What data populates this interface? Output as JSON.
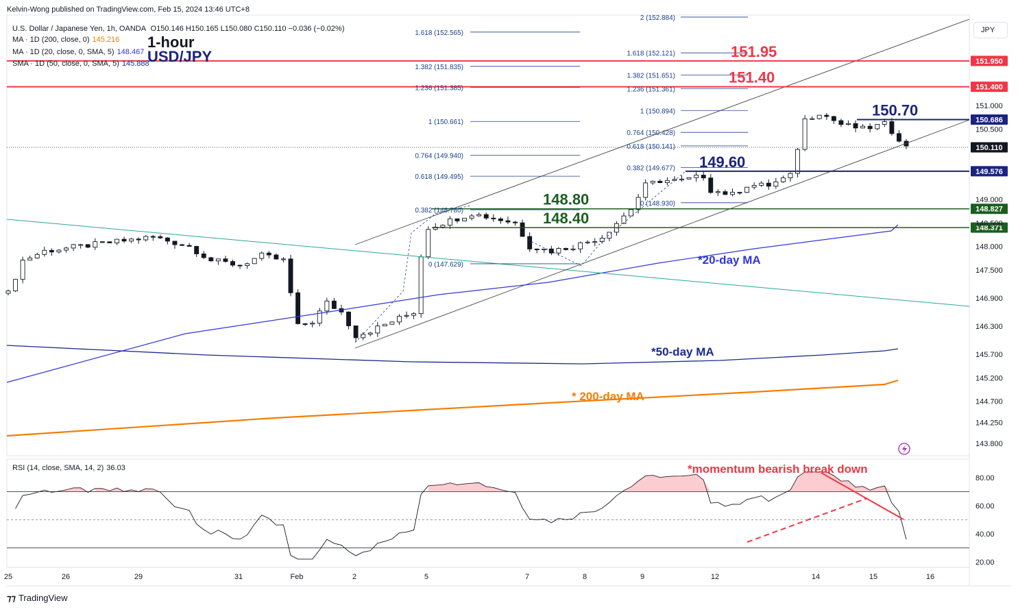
{
  "header": {
    "publisher": "Kelvin-Wong published on TradingView.com, Feb 15, 2024 13:46 UTC+8",
    "symbol_line": "U.S. Dollar / Japanese Yen, 1h, OANDA",
    "ohlc": "O150.146  H150.165  L150.080  C150.110  −0.036 (−0.02%)",
    "ind1_label": "MA · 1D (200, close, 0)",
    "ind1_value": "145.216",
    "ind2_label": "MA · 1D (20, close, 0, SMA, 5)",
    "ind2_value": "148.467",
    "ind3_label": "SMA · 1D (50, close, 0, SMA, 5)",
    "ind3_value": "145.888",
    "title_line1": "1-hour",
    "title_line2": "USD/JPY",
    "currency_button": "JPY",
    "rsi_label": "RSI (14, close, SMA, 14, 2)",
    "rsi_value": "36.03",
    "footer": "TradingView"
  },
  "colors": {
    "up": "#131722",
    "resistance": "#f23645",
    "support": "#1b5e20",
    "pivot": "#1a237e",
    "ma20": "#3036d6",
    "ma50": "#1a2a8c",
    "ma200": "#f57c00",
    "channel": "#444444",
    "downtrend": "#26a69a",
    "fib": "#1a3f8c"
  },
  "chart_data": [
    {
      "type": "candlestick",
      "series_name": "U.S. Dollar / Japanese Yen, 1h",
      "price_axis_ticks": [
        "151.000",
        "150.500",
        "149.000",
        "148.500",
        "148.000",
        "147.500",
        "146.900",
        "146.300",
        "145.700",
        "145.200",
        "144.700",
        "144.250",
        "143.800"
      ],
      "time_axis_labels": [
        "25",
        "26",
        "29",
        "31",
        "Feb",
        "2",
        "5",
        "7",
        "8",
        "9",
        "12",
        "14",
        "15",
        "16"
      ],
      "price_path": [
        [
          0,
          147.0
        ],
        [
          2,
          147.7
        ],
        [
          5,
          147.9
        ],
        [
          10,
          148.0
        ],
        [
          15,
          148.1
        ],
        [
          20,
          148.2
        ],
        [
          25,
          148.0
        ],
        [
          28,
          147.7
        ],
        [
          32,
          147.6
        ],
        [
          35,
          147.8
        ],
        [
          38,
          147.7
        ],
        [
          40,
          146.3
        ],
        [
          42,
          146.4
        ],
        [
          44,
          146.8
        ],
        [
          46,
          146.6
        ],
        [
          48,
          146.1
        ],
        [
          50,
          146.2
        ],
        [
          53,
          146.4
        ],
        [
          56,
          146.6
        ],
        [
          57,
          147.8
        ],
        [
          58,
          148.4
        ],
        [
          60,
          148.5
        ],
        [
          62,
          148.6
        ],
        [
          64,
          148.7
        ],
        [
          67,
          148.6
        ],
        [
          70,
          148.5
        ],
        [
          72,
          148.0
        ],
        [
          75,
          147.9
        ],
        [
          78,
          148.0
        ],
        [
          80,
          148.1
        ],
        [
          82,
          148.2
        ],
        [
          84,
          148.5
        ],
        [
          86,
          148.8
        ],
        [
          88,
          149.3
        ],
        [
          90,
          149.4
        ],
        [
          93,
          149.4
        ],
        [
          96,
          149.5
        ],
        [
          97,
          149.2
        ],
        [
          100,
          149.1
        ],
        [
          102,
          149.3
        ],
        [
          105,
          149.3
        ],
        [
          108,
          149.5
        ],
        [
          110,
          150.7
        ],
        [
          112,
          150.85
        ],
        [
          115,
          150.6
        ],
        [
          118,
          150.5
        ],
        [
          121,
          150.6
        ],
        [
          123,
          150.3
        ],
        [
          124,
          150.11
        ]
      ],
      "levels": [
        {
          "value": 151.95,
          "label": "151.95",
          "axis_label": "151.950",
          "role": "resistance"
        },
        {
          "value": 151.4,
          "label": "151.40",
          "axis_label": "151.400",
          "role": "resistance"
        },
        {
          "value": 150.7,
          "label": "150.70",
          "axis_label": "150.686",
          "role": "pivot"
        },
        {
          "value": 150.11,
          "label": "",
          "axis_label": "150.110",
          "role": "last"
        },
        {
          "value": 149.6,
          "label": "149.60",
          "axis_label": "149.576",
          "role": "pivot"
        },
        {
          "value": 148.8,
          "label": "148.80",
          "axis_label": "148.827",
          "role": "support"
        },
        {
          "value": 148.4,
          "label": "148.40",
          "axis_label": "148.371",
          "role": "support"
        }
      ],
      "fib_sets": [
        {
          "lines": [
            {
              "ratio": "1.618",
              "price": "152.565"
            },
            {
              "ratio": "1.382",
              "price": "151.835"
            },
            {
              "ratio": "1.236",
              "price": "151.385"
            },
            {
              "ratio": "1",
              "price": "150.661"
            },
            {
              "ratio": "0.764",
              "price": "149.940"
            },
            {
              "ratio": "0.618",
              "price": "149.495"
            },
            {
              "ratio": "0.382",
              "price": "148.780"
            },
            {
              "ratio": "0",
              "price": "147.629"
            }
          ]
        },
        {
          "lines": [
            {
              "ratio": "2",
              "price": "152.884"
            },
            {
              "ratio": "1.618",
              "price": "152.121"
            },
            {
              "ratio": "1.382",
              "price": "151.651"
            },
            {
              "ratio": "1.236",
              "price": "151.361"
            },
            {
              "ratio": "1",
              "price": "150.894"
            },
            {
              "ratio": "0.764",
              "price": "150.428"
            },
            {
              "ratio": "0.618",
              "price": "150.141"
            },
            {
              "ratio": "0.382",
              "price": "149.677"
            },
            {
              "ratio": "0",
              "price": "148.930"
            }
          ]
        }
      ],
      "annotations": [
        "*20-day MA",
        "*50-day MA",
        "* 200-day MA"
      ]
    },
    {
      "type": "line",
      "series_name": "RSI (14, close, SMA, 14, 2)",
      "y_ticks": [
        "80.00",
        "60.00",
        "40.00",
        "20.00"
      ],
      "bands": [
        70,
        50,
        30
      ],
      "last_value": 36.03,
      "annotation": "*momentum bearish break down"
    }
  ]
}
